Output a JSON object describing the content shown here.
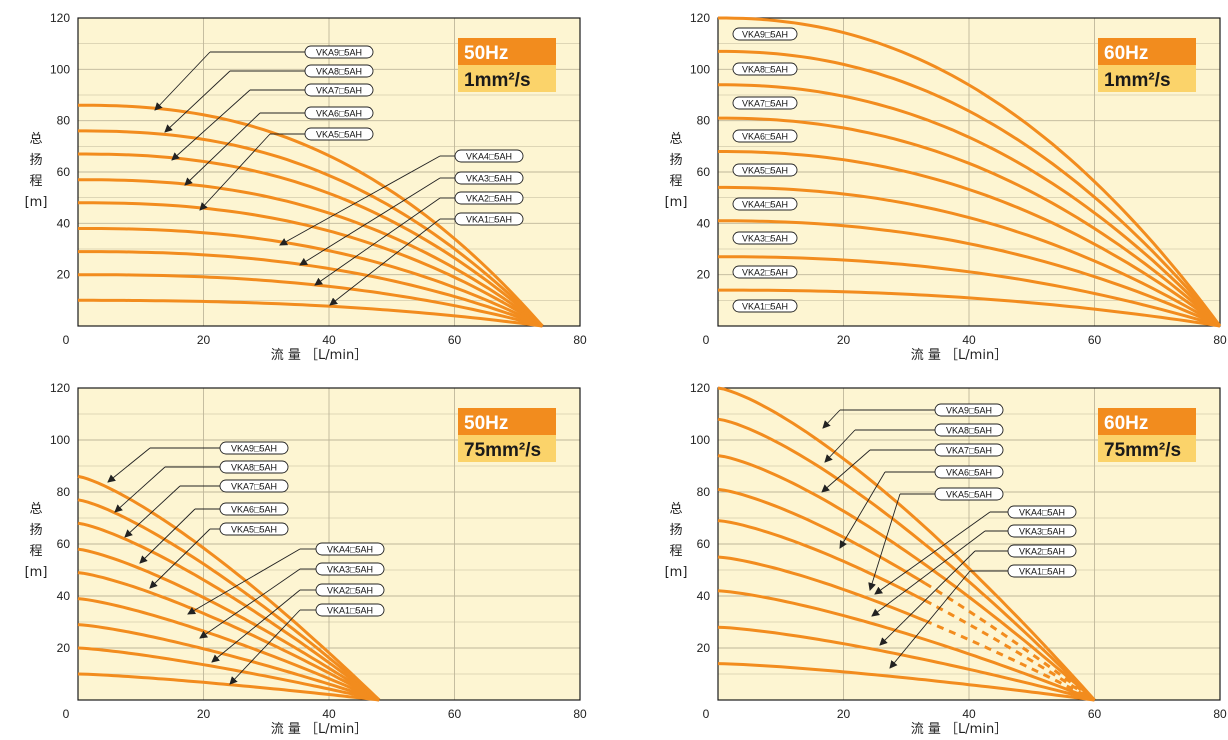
{
  "colors": {
    "curve": "#f28c1e",
    "background": "#fdf5d2",
    "grid": "#bfb79a",
    "badge_top": "#f28c1e",
    "badge_bottom": "#fbd36a"
  },
  "y_axis_label": [
    "总",
    "扬",
    "程",
    "[m]"
  ],
  "x_axis_label": "流 量 ［L/min］",
  "chart_data": [
    {
      "type": "line",
      "badge": {
        "frequency": "50Hz",
        "viscosity": "1mm²/s"
      },
      "xlim": [
        0,
        80
      ],
      "ylim": [
        0,
        120
      ],
      "x_ticks": [
        "0",
        "20",
        "40",
        "60",
        "80"
      ],
      "y_ticks": [
        "20",
        "40",
        "60",
        "80",
        "100",
        "120"
      ],
      "max_flow": 74,
      "dashed_from": null,
      "shape_exponent": 2.4,
      "series": [
        {
          "name": "VKA1□5AH",
          "shutoff_head": 10
        },
        {
          "name": "VKA2□5AH",
          "shutoff_head": 20
        },
        {
          "name": "VKA3□5AH",
          "shutoff_head": 29
        },
        {
          "name": "VKA4□5AH",
          "shutoff_head": 38
        },
        {
          "name": "VKA5□5AH",
          "shutoff_head": 48
        },
        {
          "name": "VKA6□5AH",
          "shutoff_head": 57
        },
        {
          "name": "VKA7□5AH",
          "shutoff_head": 67
        },
        {
          "name": "VKA8□5AH",
          "shutoff_head": 76
        },
        {
          "name": "VKA9□5AH",
          "shutoff_head": 86
        }
      ]
    },
    {
      "type": "line",
      "badge": {
        "frequency": "60Hz",
        "viscosity": "1mm²/s"
      },
      "xlim": [
        0,
        80
      ],
      "ylim": [
        0,
        120
      ],
      "x_ticks": [
        "0",
        "20",
        "40",
        "60",
        "80"
      ],
      "y_ticks": [
        "20",
        "40",
        "60",
        "80",
        "100",
        "120"
      ],
      "max_flow": 80,
      "dashed_from": null,
      "shape_exponent": 2.2,
      "series": [
        {
          "name": "VKA1□5AH",
          "shutoff_head": 14
        },
        {
          "name": "VKA2□5AH",
          "shutoff_head": 27
        },
        {
          "name": "VKA3□5AH",
          "shutoff_head": 41
        },
        {
          "name": "VKA4□5AH",
          "shutoff_head": 54
        },
        {
          "name": "VKA5□5AH",
          "shutoff_head": 68
        },
        {
          "name": "VKA6□5AH",
          "shutoff_head": 81
        },
        {
          "name": "VKA7□5AH",
          "shutoff_head": 94
        },
        {
          "name": "VKA8□5AH",
          "shutoff_head": 107
        },
        {
          "name": "VKA9□5AH",
          "shutoff_head": 120
        }
      ]
    },
    {
      "type": "line",
      "badge": {
        "frequency": "50Hz",
        "viscosity": "75mm²/s"
      },
      "xlim": [
        0,
        80
      ],
      "ylim": [
        0,
        120
      ],
      "x_ticks": [
        "0",
        "20",
        "40",
        "60",
        "80"
      ],
      "y_ticks": [
        "20",
        "40",
        "60",
        "80",
        "100",
        "120"
      ],
      "max_flow": 48,
      "dashed_from": null,
      "shape_exponent": 1.3,
      "series": [
        {
          "name": "VKA1□5AH",
          "shutoff_head": 10
        },
        {
          "name": "VKA2□5AH",
          "shutoff_head": 20
        },
        {
          "name": "VKA3□5AH",
          "shutoff_head": 29
        },
        {
          "name": "VKA4□5AH",
          "shutoff_head": 39
        },
        {
          "name": "VKA5□5AH",
          "shutoff_head": 49
        },
        {
          "name": "VKA6□5AH",
          "shutoff_head": 58
        },
        {
          "name": "VKA7□5AH",
          "shutoff_head": 68
        },
        {
          "name": "VKA8□5AH",
          "shutoff_head": 77
        },
        {
          "name": "VKA9□5AH",
          "shutoff_head": 86
        }
      ]
    },
    {
      "type": "line",
      "badge": {
        "frequency": "60Hz",
        "viscosity": "75mm²/s"
      },
      "xlim": [
        0,
        80
      ],
      "ylim": [
        0,
        120
      ],
      "x_ticks": [
        "0",
        "20",
        "40",
        "60",
        "80"
      ],
      "y_ticks": [
        "20",
        "40",
        "60",
        "80",
        "100",
        "120"
      ],
      "max_flow": 60,
      "dashed_from": 0.55,
      "shape_exponent": 1.35,
      "series": [
        {
          "name": "VKA1□5AH",
          "shutoff_head": 14
        },
        {
          "name": "VKA2□5AH",
          "shutoff_head": 28
        },
        {
          "name": "VKA3□5AH",
          "shutoff_head": 42
        },
        {
          "name": "VKA4□5AH",
          "shutoff_head": 55
        },
        {
          "name": "VKA5□5AH",
          "shutoff_head": 69
        },
        {
          "name": "VKA6□5AH",
          "shutoff_head": 81
        },
        {
          "name": "VKA7□5AH",
          "shutoff_head": 94
        },
        {
          "name": "VKA8□5AH",
          "shutoff_head": 108
        },
        {
          "name": "VKA9□5AH",
          "shutoff_head": 120
        }
      ]
    }
  ]
}
